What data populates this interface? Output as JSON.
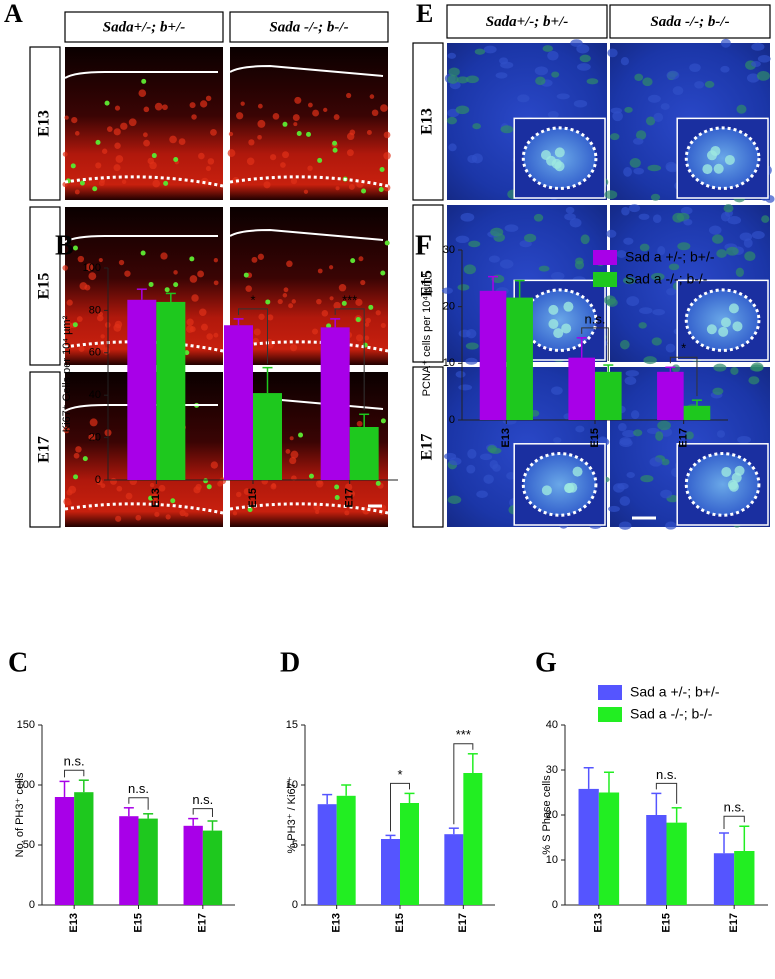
{
  "figure": {
    "panels": [
      {
        "letter": "A",
        "columns": [
          "Sada+/-; b+/-",
          "Sada -/-; b-/-"
        ],
        "rows": [
          "E13",
          "E15",
          "E17"
        ]
      },
      {
        "letter": "E",
        "columns": [
          "Sada+/-; b+/-",
          "Sada -/-; b-/-"
        ],
        "rows": [
          "E13",
          "E15",
          "E17"
        ]
      }
    ]
  },
  "chart_data": [
    {
      "type": "bar",
      "panel": "B",
      "ylabel": "Ki67⁺ Cells per 10⁴ µm²",
      "categories": [
        "E13",
        "E15",
        "E17"
      ],
      "series": [
        {
          "color": "#a800e8",
          "values": [
            85,
            73,
            72
          ],
          "errors": [
            5,
            3,
            4
          ]
        },
        {
          "color": "#1ec81e",
          "values": [
            84,
            41,
            25
          ],
          "errors": [
            4,
            12,
            6
          ]
        }
      ],
      "ylim": [
        0,
        100
      ],
      "yticks": [
        0,
        20,
        40,
        60,
        80,
        100
      ],
      "annotations": [
        {
          "text": "*",
          "category": "E15"
        },
        {
          "text": "***",
          "category": "E17"
        }
      ]
    },
    {
      "type": "bar",
      "panel": "F",
      "ylabel": "PCNA⁺ cells per 10⁴ µm²",
      "categories": [
        "E13",
        "E15",
        "E17"
      ],
      "series": [
        {
          "name": "Sad a +/-; b+/-",
          "color": "#a800e8",
          "values": [
            22.8,
            11,
            8.5
          ],
          "errors": [
            2.5,
            3.5,
            0.8
          ]
        },
        {
          "name": "Sad a -/-; b-/-",
          "color": "#1ec81e",
          "values": [
            21.6,
            8.5,
            2.5
          ],
          "errors": [
            3,
            1.2,
            1
          ]
        }
      ],
      "ylim": [
        0,
        30
      ],
      "yticks": [
        0,
        10,
        20,
        30
      ],
      "annotations": [
        {
          "text": "n.s.",
          "category": "E15"
        },
        {
          "text": "*",
          "category": "E17"
        }
      ]
    },
    {
      "type": "bar",
      "panel": "C",
      "ylabel": "No. of PH3⁺ cells",
      "categories": [
        "E13",
        "E15",
        "E17"
      ],
      "series": [
        {
          "color": "#a800e8",
          "values": [
            90,
            74,
            66
          ],
          "errors": [
            13,
            7,
            6
          ]
        },
        {
          "color": "#1ec81e",
          "values": [
            94,
            72,
            62
          ],
          "errors": [
            10,
            4,
            8
          ]
        }
      ],
      "ylim": [
        0,
        150
      ],
      "yticks": [
        0,
        50,
        100,
        150
      ],
      "annotations": [
        {
          "text": "n.s.",
          "category": "E13"
        },
        {
          "text": "n.s.",
          "category": "E15"
        },
        {
          "text": "n.s.",
          "category": "E17"
        }
      ]
    },
    {
      "type": "bar",
      "panel": "D",
      "ylabel": "% PH3⁺ / Ki67⁺",
      "categories": [
        "E13",
        "E15",
        "E17"
      ],
      "series": [
        {
          "color": "#5555ff",
          "values": [
            8.4,
            5.5,
            5.9
          ],
          "errors": [
            0.8,
            0.3,
            0.5
          ]
        },
        {
          "color": "#22ee22",
          "values": [
            9.1,
            8.5,
            11
          ],
          "errors": [
            0.9,
            0.8,
            1.6
          ]
        }
      ],
      "ylim": [
        0,
        15
      ],
      "yticks": [
        0,
        5,
        10,
        15
      ],
      "annotations": [
        {
          "text": "*",
          "category": "E15"
        },
        {
          "text": "***",
          "category": "E17"
        }
      ]
    },
    {
      "type": "bar",
      "panel": "G",
      "ylabel": "% S Phase cells",
      "categories": [
        "E13",
        "E15",
        "E17"
      ],
      "series": [
        {
          "name": "Sad a +/-; b+/-",
          "color": "#5555ff",
          "values": [
            25.8,
            20,
            11.5
          ],
          "errors": [
            4.7,
            4.8,
            4.5
          ]
        },
        {
          "name": "Sad a -/-; b-/-",
          "color": "#22ee22",
          "values": [
            25,
            18.3,
            12
          ],
          "errors": [
            4.5,
            3.3,
            5.5
          ]
        }
      ],
      "ylim": [
        0,
        40
      ],
      "yticks": [
        0,
        10,
        20,
        30,
        40
      ],
      "annotations": [
        {
          "text": "n.s.",
          "category": "E15"
        },
        {
          "text": "n.s.",
          "category": "E17"
        }
      ]
    }
  ]
}
